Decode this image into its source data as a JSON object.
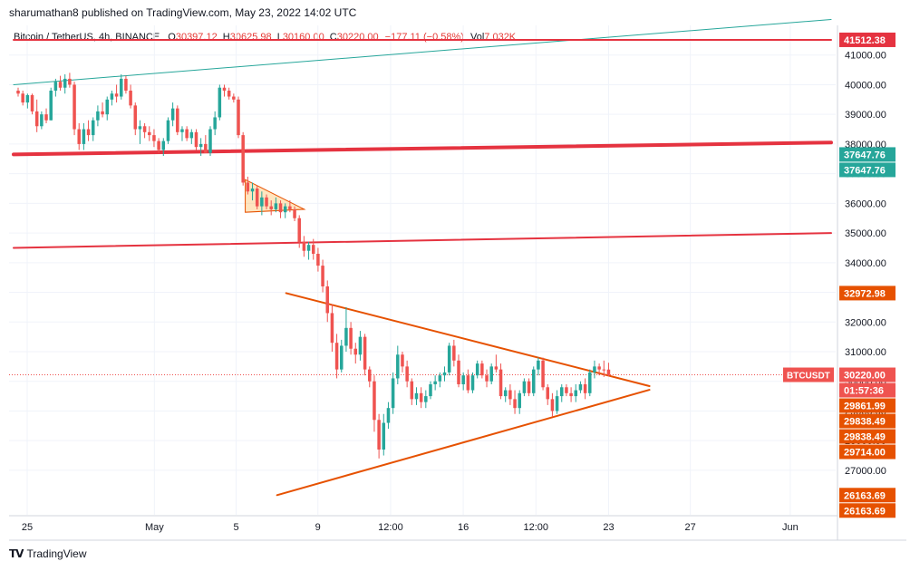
{
  "header": {
    "publisher_line": "sharumathan8 published on TradingView.com, May 23, 2022 14:02 UTC"
  },
  "legend": {
    "title": "Bitcoin / TetherUS, 4h, BINANCE",
    "o_label": "O",
    "o_value": "30397.12",
    "h_label": "H",
    "h_value": "30625.98",
    "l_label": "L",
    "l_value": "30160.00",
    "c_label": "C",
    "c_value": "30220.00",
    "change": "−177.11 (−0.58%)",
    "vol_label": "Vol",
    "vol_value": "7.032K"
  },
  "footer": {
    "brand": "TradingView"
  },
  "colors": {
    "up": "#26a69a",
    "down": "#ef5350",
    "red_line": "#e53340",
    "teal_line": "#26a69a",
    "orange": "#e65100",
    "grid": "#f0f3fa"
  },
  "chart_data": {
    "type": "candlestick",
    "symbol": "BTCUSDT",
    "currency_label": "USDT",
    "ylim": [
      25500,
      42000
    ],
    "y_ticks": [
      27000,
      28000,
      29000,
      30000,
      31000,
      32000,
      33000,
      34000,
      35000,
      36000,
      37000,
      38000,
      39000,
      40000,
      41000
    ],
    "y_tick_labels": [
      "27000.00",
      "28000.00",
      "29000.00",
      "30000.00",
      "31000.00",
      "32000.00",
      "33000.00",
      "34000.00",
      "35000.00",
      "36000.00",
      "37000.00",
      "38000.00",
      "39000.00",
      "40000.00",
      "41000.00"
    ],
    "x_labels": [
      "25",
      "May",
      "5",
      "9",
      "12:00",
      "16",
      "12:00",
      "23",
      "27",
      "Jun"
    ],
    "x_range_bars": [
      0,
      180
    ],
    "x_label_bars": [
      3,
      31,
      49,
      67,
      83,
      99,
      115,
      131,
      149,
      171
    ],
    "price_badges": [
      {
        "label": "41512.38",
        "value": 41512.38,
        "color": "#e53340"
      },
      {
        "label": "37647.76",
        "value": 37647.76,
        "color": "#26a69a"
      },
      {
        "label": "37647.76",
        "value": 37647.76,
        "color": "#26a69a"
      },
      {
        "label": "32972.98",
        "value": 32972.98,
        "color": "#e65100"
      },
      {
        "label": "30220.00",
        "value": 30220.0,
        "color": "#ef5350"
      },
      {
        "label": "01:57:36",
        "value": 29865,
        "color": "#ef5350"
      },
      {
        "label": "29861.99",
        "value": 29861.99,
        "color": "#e65100"
      },
      {
        "label": "29838.49",
        "value": 29838.49,
        "color": "#e65100"
      },
      {
        "label": "29838.49",
        "value": 29838.49,
        "color": "#e65100"
      },
      {
        "label": "29714.00",
        "value": 29714.0,
        "color": "#e65100"
      },
      {
        "label": "26163.69",
        "value": 26163.69,
        "color": "#e65100"
      },
      {
        "label": "26163.69",
        "value": 26163.69,
        "color": "#e65100"
      }
    ],
    "symbol_badge": {
      "label": "BTCUSDT",
      "value": 30220.0
    },
    "trendlines": [
      {
        "name": "teal-upper-line",
        "color": "#26a69a",
        "width": 1,
        "x1": 0,
        "y1": 40000,
        "x2": 180,
        "y2": 42200
      },
      {
        "name": "red-horizontal-top",
        "color": "#e53340",
        "width": 2,
        "x1": 0,
        "y1": 41512.38,
        "x2": 180,
        "y2": 41512.38
      },
      {
        "name": "red-thick-support",
        "color": "#e53340",
        "width": 4,
        "x1": 0,
        "y1": 37650,
        "x2": 180,
        "y2": 38050
      },
      {
        "name": "red-mid-line",
        "color": "#e53340",
        "width": 2,
        "x1": 0,
        "y1": 34500,
        "x2": 180,
        "y2": 35000
      },
      {
        "name": "triangle-upper",
        "color": "#e65100",
        "width": 2,
        "x1": 60,
        "y1": 32972.98,
        "x2": 140,
        "y2": 29838.49
      },
      {
        "name": "triangle-lower",
        "color": "#e65100",
        "width": 2,
        "x1": 58,
        "y1": 26163.69,
        "x2": 140,
        "y2": 29714.0
      }
    ],
    "small_triangle": {
      "points": [
        [
          51,
          36800
        ],
        [
          51,
          35700
        ],
        [
          64,
          35800
        ]
      ]
    },
    "last_price": 30220.0,
    "candles": [
      [
        39800,
        39900,
        39600,
        39700
      ],
      [
        39700,
        39800,
        39300,
        39400
      ],
      [
        39400,
        39700,
        39200,
        39650
      ],
      [
        39650,
        39700,
        39000,
        39100
      ],
      [
        39100,
        39500,
        38400,
        38600
      ],
      [
        38600,
        39100,
        38500,
        39000
      ],
      [
        39000,
        39200,
        38700,
        38800
      ],
      [
        38800,
        39900,
        38800,
        39800
      ],
      [
        39800,
        40200,
        39600,
        40100
      ],
      [
        40100,
        40300,
        39800,
        39900
      ],
      [
        39900,
        40350,
        39700,
        40200
      ],
      [
        40200,
        40400,
        39900,
        40000
      ],
      [
        40000,
        40100,
        38300,
        38500
      ],
      [
        38500,
        38700,
        37800,
        38000
      ],
      [
        38000,
        38700,
        37800,
        38500
      ],
      [
        38500,
        38800,
        38100,
        38300
      ],
      [
        38300,
        38900,
        38100,
        38800
      ],
      [
        38800,
        39300,
        38600,
        39100
      ],
      [
        39100,
        39400,
        38900,
        39000
      ],
      [
        39000,
        39600,
        38800,
        39500
      ],
      [
        39500,
        39800,
        39300,
        39700
      ],
      [
        39700,
        40000,
        39400,
        39600
      ],
      [
        39600,
        40350,
        39500,
        40200
      ],
      [
        40200,
        40300,
        39700,
        39800
      ],
      [
        39800,
        40000,
        39200,
        39300
      ],
      [
        39300,
        39400,
        38300,
        38500
      ],
      [
        38500,
        38800,
        38000,
        38600
      ],
      [
        38600,
        38700,
        38200,
        38400
      ],
      [
        38400,
        38600,
        38100,
        38300
      ],
      [
        38300,
        38500,
        37900,
        38100
      ],
      [
        38100,
        38200,
        37700,
        37800
      ],
      [
        37800,
        38200,
        37600,
        38100
      ],
      [
        38100,
        38900,
        38000,
        38800
      ],
      [
        38800,
        39400,
        38600,
        39200
      ],
      [
        39200,
        39300,
        38300,
        38400
      ],
      [
        38400,
        38600,
        38100,
        38500
      ],
      [
        38500,
        38600,
        38100,
        38200
      ],
      [
        38200,
        38500,
        38000,
        38400
      ],
      [
        38400,
        38500,
        37800,
        37900
      ],
      [
        37900,
        38200,
        37600,
        38000
      ],
      [
        38000,
        38300,
        37800,
        37700
      ],
      [
        37700,
        38600,
        37600,
        38500
      ],
      [
        38500,
        39100,
        38300,
        38900
      ],
      [
        38900,
        40000,
        38800,
        39900
      ],
      [
        39900,
        40000,
        39600,
        39800
      ],
      [
        39800,
        39900,
        39500,
        39600
      ],
      [
        39600,
        39700,
        39400,
        39500
      ],
      [
        39500,
        39600,
        38200,
        38300
      ],
      [
        38300,
        38400,
        36600,
        36700
      ],
      [
        36700,
        36900,
        36300,
        36400
      ],
      [
        36400,
        36700,
        36100,
        36500
      ],
      [
        36500,
        36600,
        35800,
        35900
      ],
      [
        35900,
        36400,
        35600,
        36200
      ],
      [
        36200,
        36300,
        35800,
        35900
      ],
      [
        35900,
        36100,
        35600,
        35800
      ],
      [
        35800,
        36200,
        35700,
        36000
      ],
      [
        36000,
        36100,
        35500,
        35700
      ],
      [
        35700,
        36000,
        35500,
        35900
      ],
      [
        35900,
        36100,
        35700,
        35800
      ],
      [
        35800,
        35900,
        35400,
        35500
      ],
      [
        35500,
        35600,
        34500,
        34700
      ],
      [
        34700,
        34900,
        34200,
        34400
      ],
      [
        34400,
        34700,
        34100,
        34600
      ],
      [
        34600,
        34800,
        34100,
        34300
      ],
      [
        34300,
        34500,
        33700,
        33900
      ],
      [
        33900,
        34100,
        33000,
        33200
      ],
      [
        33200,
        33400,
        32000,
        32300
      ],
      [
        32300,
        32600,
        31000,
        31300
      ],
      [
        31300,
        31600,
        30100,
        30400
      ],
      [
        30400,
        31400,
        30300,
        31200
      ],
      [
        31200,
        32500,
        31000,
        31800
      ],
      [
        31800,
        32000,
        30900,
        31100
      ],
      [
        31100,
        31300,
        30600,
        30900
      ],
      [
        30900,
        31700,
        30700,
        31500
      ],
      [
        31500,
        31600,
        30200,
        30400
      ],
      [
        30400,
        30500,
        29800,
        30000
      ],
      [
        30000,
        30200,
        28300,
        28700
      ],
      [
        28700,
        28900,
        27400,
        27700
      ],
      [
        27700,
        28900,
        27500,
        28600
      ],
      [
        28600,
        29300,
        28400,
        29100
      ],
      [
        29100,
        30300,
        28900,
        30100
      ],
      [
        30100,
        31200,
        29900,
        30900
      ],
      [
        30900,
        31000,
        30300,
        30500
      ],
      [
        30500,
        30700,
        29800,
        30000
      ],
      [
        30000,
        30100,
        29200,
        29400
      ],
      [
        29400,
        29800,
        29200,
        29600
      ],
      [
        29600,
        29800,
        29100,
        29300
      ],
      [
        29300,
        29700,
        29100,
        29500
      ],
      [
        29500,
        30000,
        29400,
        29900
      ],
      [
        29900,
        30200,
        29700,
        30000
      ],
      [
        30000,
        30300,
        29800,
        30200
      ],
      [
        30200,
        30500,
        30000,
        30300
      ],
      [
        30300,
        31300,
        30200,
        31200
      ],
      [
        31200,
        31400,
        30500,
        30700
      ],
      [
        30700,
        30900,
        29800,
        29900
      ],
      [
        29900,
        30300,
        29700,
        30200
      ],
      [
        30200,
        30400,
        29600,
        29700
      ],
      [
        29700,
        30300,
        29600,
        30200
      ],
      [
        30200,
        30700,
        30100,
        30600
      ],
      [
        30600,
        30700,
        30100,
        30200
      ],
      [
        30200,
        30400,
        29800,
        30000
      ],
      [
        30000,
        30600,
        29900,
        30500
      ],
      [
        30500,
        30900,
        30300,
        30400
      ],
      [
        30400,
        30600,
        29400,
        29500
      ],
      [
        29500,
        29800,
        29300,
        29700
      ],
      [
        29700,
        29900,
        29200,
        29400
      ],
      [
        29400,
        29700,
        28900,
        29100
      ],
      [
        29100,
        29700,
        28900,
        29600
      ],
      [
        29600,
        30100,
        29500,
        30000
      ],
      [
        30000,
        30100,
        29500,
        29600
      ],
      [
        29600,
        30500,
        29500,
        30400
      ],
      [
        30400,
        30800,
        30200,
        30700
      ],
      [
        30700,
        30800,
        29700,
        29800
      ],
      [
        29800,
        29900,
        29200,
        29400
      ],
      [
        29400,
        29600,
        28800,
        29000
      ],
      [
        29000,
        29700,
        28900,
        29500
      ],
      [
        29500,
        29900,
        29300,
        29800
      ],
      [
        29800,
        29900,
        29500,
        29600
      ],
      [
        29600,
        29800,
        29300,
        29500
      ],
      [
        29500,
        29900,
        29300,
        29700
      ],
      [
        29700,
        30000,
        29600,
        29900
      ],
      [
        29900,
        30100,
        29400,
        29600
      ],
      [
        29600,
        30400,
        29500,
        30300
      ],
      [
        30300,
        30700,
        30100,
        30500
      ],
      [
        30500,
        30600,
        30200,
        30400
      ],
      [
        30400,
        30700,
        30150,
        30397
      ],
      [
        30397,
        30626,
        30160,
        30220
      ]
    ]
  }
}
